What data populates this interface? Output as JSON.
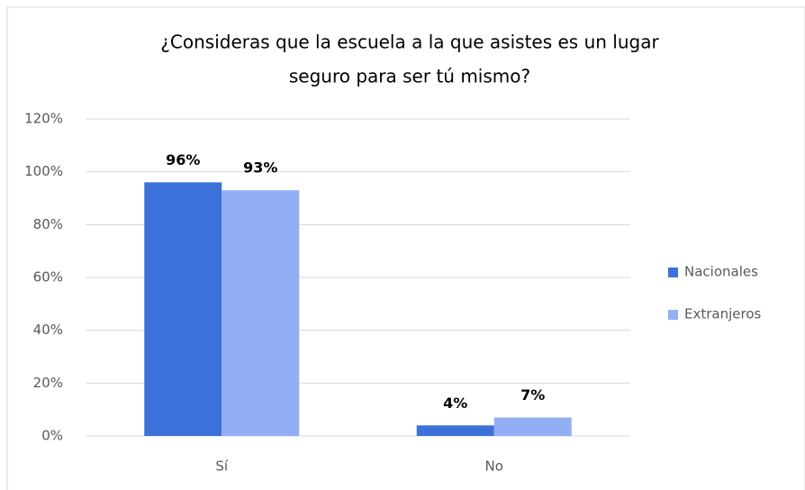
{
  "chart_data": {
    "type": "bar",
    "title": [
      "¿Consideras que la escuela a la que asistes es un lugar",
      "seguro para ser tú mismo?"
    ],
    "categories": [
      "Sí",
      "No"
    ],
    "series": [
      {
        "name": "Nacionales",
        "color": "#3b71d8",
        "values": [
          96,
          4
        ],
        "value_labels": [
          "96%",
          "4%"
        ]
      },
      {
        "name": "Extranjeros",
        "color": "#92aef5",
        "values": [
          93,
          7
        ],
        "value_labels": [
          "93%",
          "7%"
        ]
      }
    ],
    "ylim": [
      0,
      120
    ],
    "yticks": [
      {
        "value": 0,
        "label": "0%"
      },
      {
        "value": 20,
        "label": "20%"
      },
      {
        "value": 40,
        "label": "40%"
      },
      {
        "value": 60,
        "label": "60%"
      },
      {
        "value": 80,
        "label": "80%"
      },
      {
        "value": 100,
        "label": "100%"
      },
      {
        "value": 120,
        "label": "120%"
      }
    ],
    "grid": true,
    "legend": "right"
  }
}
